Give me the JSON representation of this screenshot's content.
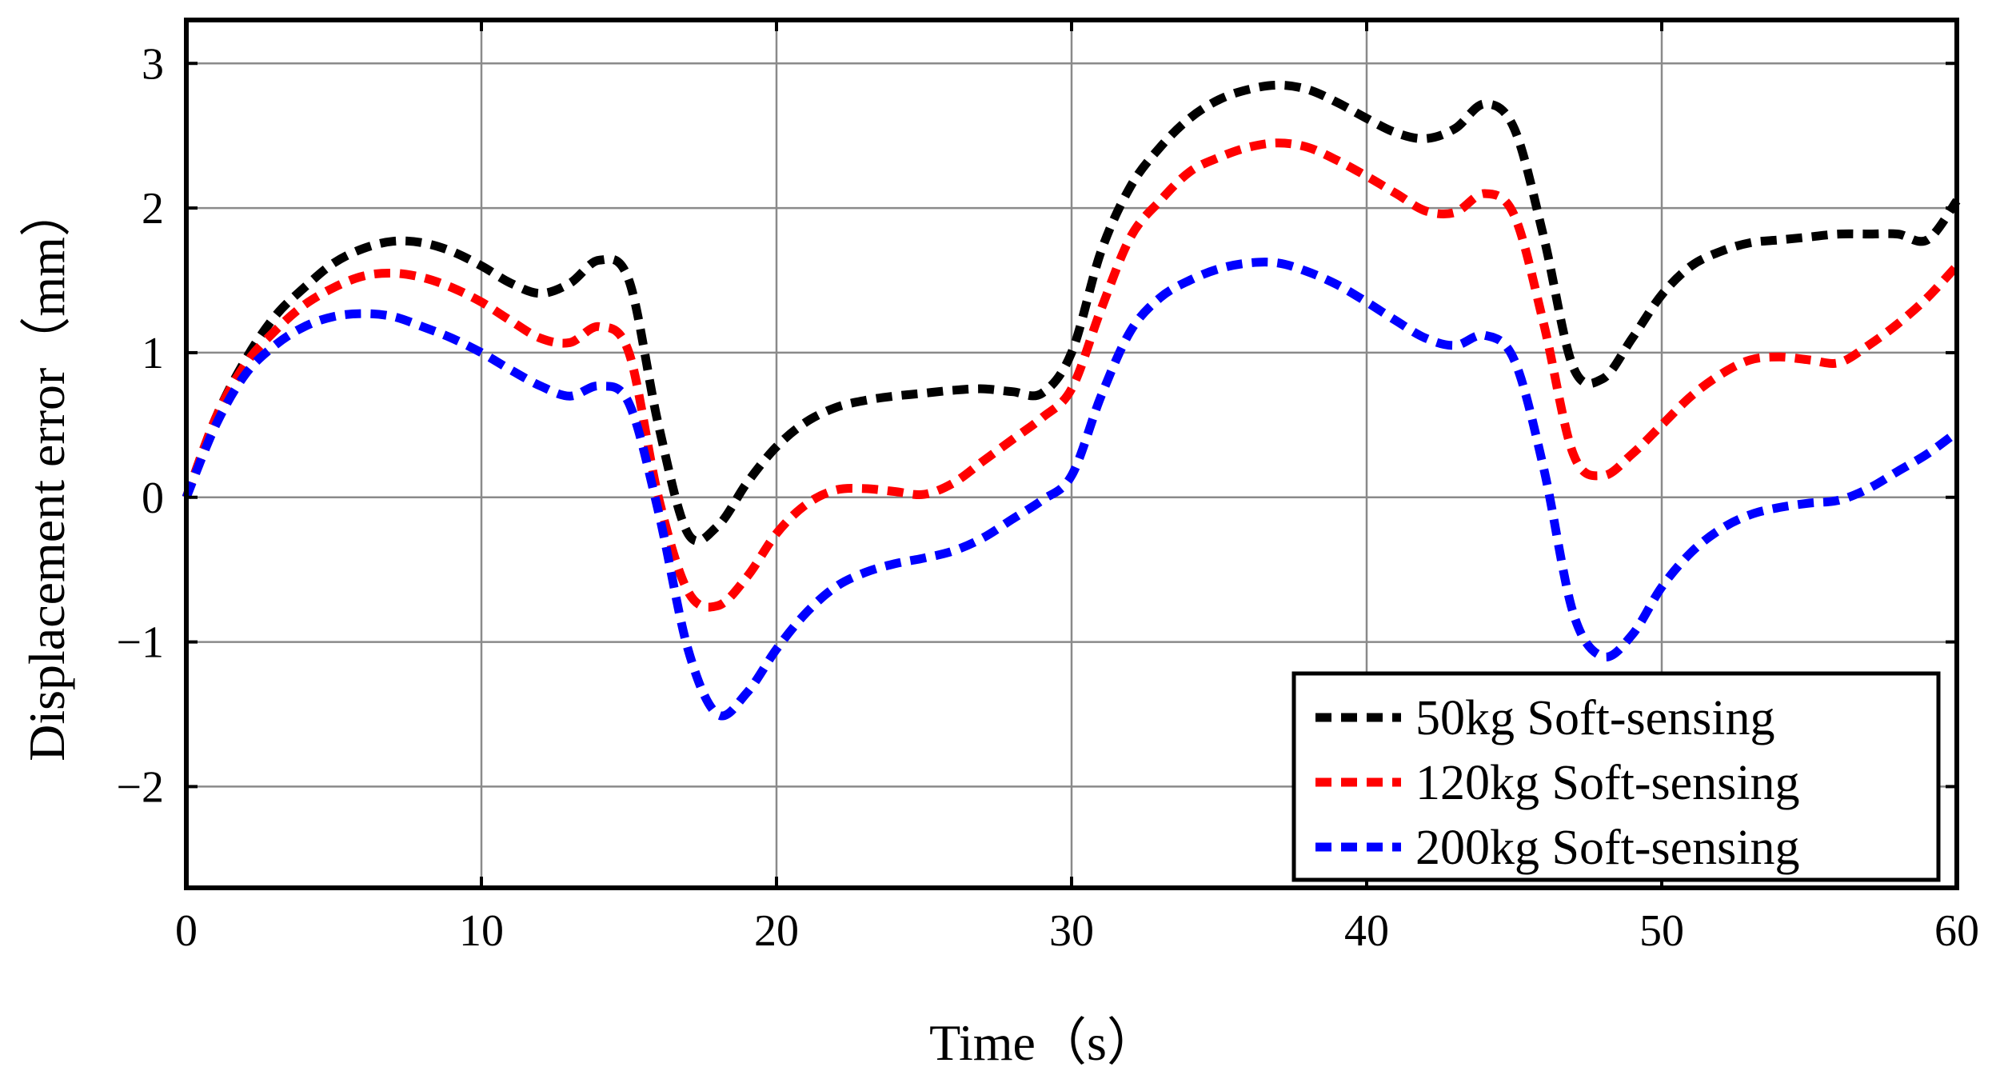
{
  "chart_data": {
    "type": "line",
    "title": "",
    "xlabel": "Time（s）",
    "ylabel": "Displacement error（mm）",
    "xlim": [
      0,
      60
    ],
    "ylim": [
      -2.7,
      3.3
    ],
    "xticks": [
      0,
      10,
      20,
      30,
      40,
      50,
      60
    ],
    "yticks": [
      3,
      2,
      1,
      0,
      -1,
      -2
    ],
    "ytick_labels": [
      "3",
      "2",
      "1",
      "0",
      "−1",
      "−2"
    ],
    "grid": true,
    "legend_position": "bottom-right",
    "series": [
      {
        "name": "50kg Soft-sensing",
        "color": "#000000",
        "x": [
          0,
          1,
          2,
          3,
          4,
          5,
          6,
          7,
          8,
          9,
          10,
          11,
          12,
          13,
          14,
          15,
          16,
          17,
          18,
          19,
          20,
          21,
          22,
          23,
          24,
          25,
          26,
          27,
          28,
          29,
          30,
          31,
          32,
          33,
          34,
          35,
          36,
          37,
          38,
          39,
          40,
          41,
          42,
          43,
          44,
          45,
          46,
          47,
          48,
          49,
          50,
          51,
          52,
          53,
          54,
          55,
          56,
          57,
          58,
          59,
          60
        ],
        "values": [
          0.0,
          0.55,
          0.95,
          1.25,
          1.45,
          1.62,
          1.72,
          1.77,
          1.76,
          1.7,
          1.6,
          1.48,
          1.41,
          1.48,
          1.64,
          1.5,
          0.5,
          -0.25,
          -0.2,
          0.1,
          0.35,
          0.52,
          0.62,
          0.67,
          0.7,
          0.72,
          0.74,
          0.75,
          0.73,
          0.72,
          1.0,
          1.7,
          2.15,
          2.42,
          2.62,
          2.75,
          2.82,
          2.85,
          2.82,
          2.73,
          2.62,
          2.52,
          2.48,
          2.55,
          2.72,
          2.55,
          1.8,
          0.9,
          0.82,
          1.1,
          1.4,
          1.6,
          1.7,
          1.76,
          1.78,
          1.8,
          1.82,
          1.82,
          1.82,
          1.78,
          2.05
        ]
      },
      {
        "name": "120kg Soft-sensing",
        "color": "#ff0000",
        "x": [
          0,
          1,
          2,
          3,
          4,
          5,
          6,
          7,
          8,
          9,
          10,
          11,
          12,
          13,
          14,
          15,
          16,
          17,
          18,
          19,
          20,
          21,
          22,
          23,
          24,
          25,
          26,
          27,
          28,
          29,
          30,
          31,
          32,
          33,
          34,
          35,
          36,
          37,
          38,
          39,
          40,
          41,
          42,
          43,
          44,
          45,
          46,
          47,
          48,
          49,
          50,
          51,
          52,
          53,
          54,
          55,
          56,
          57,
          58,
          59,
          60
        ],
        "values": [
          0.0,
          0.55,
          0.92,
          1.15,
          1.33,
          1.45,
          1.53,
          1.55,
          1.52,
          1.45,
          1.35,
          1.22,
          1.1,
          1.07,
          1.18,
          1.0,
          0.0,
          -0.65,
          -0.75,
          -0.55,
          -0.25,
          -0.05,
          0.05,
          0.06,
          0.04,
          0.02,
          0.1,
          0.25,
          0.4,
          0.55,
          0.75,
          1.3,
          1.8,
          2.05,
          2.25,
          2.35,
          2.42,
          2.45,
          2.42,
          2.33,
          2.22,
          2.1,
          1.98,
          1.97,
          2.1,
          1.95,
          1.2,
          0.3,
          0.15,
          0.3,
          0.5,
          0.7,
          0.85,
          0.95,
          0.97,
          0.95,
          0.93,
          1.05,
          1.2,
          1.38,
          1.6
        ]
      },
      {
        "name": "200kg Soft-sensing",
        "color": "#0000ff",
        "x": [
          0,
          1,
          2,
          3,
          4,
          5,
          6,
          7,
          8,
          9,
          10,
          11,
          12,
          13,
          14,
          15,
          16,
          17,
          18,
          19,
          20,
          21,
          22,
          23,
          24,
          25,
          26,
          27,
          28,
          29,
          30,
          31,
          32,
          33,
          34,
          35,
          36,
          37,
          38,
          39,
          40,
          41,
          42,
          43,
          44,
          45,
          46,
          47,
          48,
          49,
          50,
          51,
          52,
          53,
          54,
          55,
          56,
          57,
          58,
          59,
          60
        ],
        "values": [
          0.0,
          0.5,
          0.85,
          1.05,
          1.18,
          1.25,
          1.27,
          1.25,
          1.18,
          1.1,
          1.0,
          0.88,
          0.77,
          0.7,
          0.77,
          0.65,
          -0.1,
          -1.05,
          -1.5,
          -1.35,
          -1.05,
          -0.8,
          -0.62,
          -0.52,
          -0.46,
          -0.42,
          -0.37,
          -0.28,
          -0.15,
          -0.02,
          0.15,
          0.7,
          1.15,
          1.38,
          1.5,
          1.58,
          1.62,
          1.62,
          1.56,
          1.47,
          1.35,
          1.22,
          1.1,
          1.05,
          1.12,
          0.95,
          0.2,
          -0.8,
          -1.1,
          -0.95,
          -0.62,
          -0.38,
          -0.22,
          -0.12,
          -0.07,
          -0.04,
          -0.02,
          0.06,
          0.18,
          0.3,
          0.45
        ]
      }
    ]
  }
}
